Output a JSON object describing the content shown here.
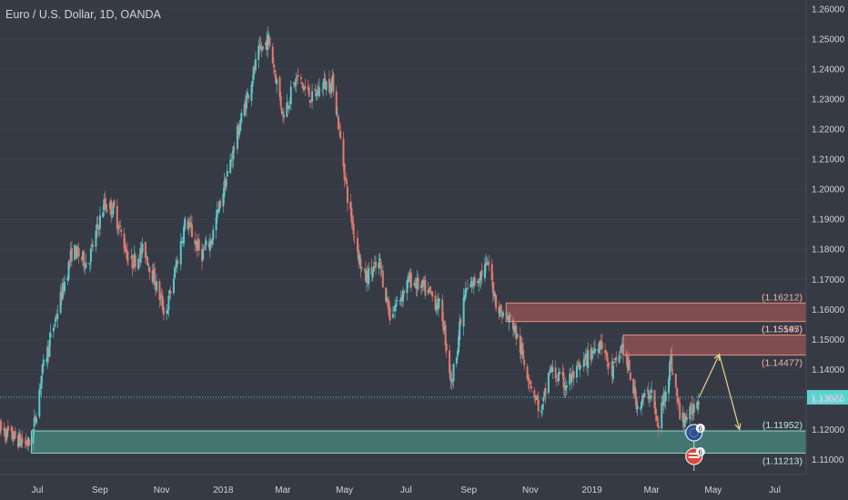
{
  "header": {
    "title": "Euro / U.S. Dollar, 1D, OANDA"
  },
  "colors": {
    "background": "#363a45",
    "up": "#5ac8c8",
    "down": "#e07b6f",
    "wick": "#c9ccd2",
    "current_line": "#5ad2d2",
    "price_tag_bg": "#5ad2d2",
    "resistance_fill": "#d9675c",
    "support_fill": "#4fa896",
    "projection": "#e8d48b",
    "axis_text": "#d1d4dc"
  },
  "chart_data": {
    "type": "candlestick",
    "symbol": "Euro / U.S. Dollar",
    "timeframe": "1D",
    "source": "OANDA",
    "ylim": [
      1.105,
      1.263
    ],
    "y_ticks": [
      "1.26000",
      "1.25000",
      "1.24000",
      "1.23000",
      "1.22000",
      "1.21000",
      "1.20000",
      "1.19000",
      "1.18000",
      "1.17000",
      "1.16000",
      "1.15000",
      "1.14000",
      "1.13000",
      "1.12000",
      "1.11000"
    ],
    "x_ticks": [
      "Jul",
      "Sep",
      "Nov",
      "2018",
      "Mar",
      "May",
      "Jul",
      "Sep",
      "Nov",
      "2019",
      "Mar",
      "May",
      "Jul"
    ],
    "current_price": "1.13072",
    "price_path": [
      [
        "2017-05-25",
        1.12
      ],
      [
        "2017-06-15",
        1.116
      ],
      [
        "2017-06-25",
        1.115
      ],
      [
        "2017-07-05",
        1.138
      ],
      [
        "2017-07-25",
        1.165
      ],
      [
        "2017-08-05",
        1.18
      ],
      [
        "2017-08-20",
        1.175
      ],
      [
        "2017-09-05",
        1.195
      ],
      [
        "2017-09-15",
        1.193
      ],
      [
        "2017-10-01",
        1.175
      ],
      [
        "2017-10-15",
        1.18
      ],
      [
        "2017-11-05",
        1.158
      ],
      [
        "2017-11-25",
        1.19
      ],
      [
        "2017-12-10",
        1.178
      ],
      [
        "2017-12-20",
        1.183
      ],
      [
        "2018-01-05",
        1.205
      ],
      [
        "2018-01-20",
        1.225
      ],
      [
        "2018-02-05",
        1.245
      ],
      [
        "2018-02-15",
        1.25
      ],
      [
        "2018-03-01",
        1.225
      ],
      [
        "2018-03-15",
        1.237
      ],
      [
        "2018-03-30",
        1.23
      ],
      [
        "2018-04-10",
        1.235
      ],
      [
        "2018-04-20",
        1.235
      ],
      [
        "2018-05-05",
        1.195
      ],
      [
        "2018-05-20",
        1.17
      ],
      [
        "2018-06-05",
        1.175
      ],
      [
        "2018-06-15",
        1.158
      ],
      [
        "2018-07-05",
        1.17
      ],
      [
        "2018-07-25",
        1.165
      ],
      [
        "2018-08-05",
        1.16
      ],
      [
        "2018-08-15",
        1.135
      ],
      [
        "2018-08-28",
        1.165
      ],
      [
        "2018-09-20",
        1.175
      ],
      [
        "2018-09-30",
        1.16
      ],
      [
        "2018-10-15",
        1.155
      ],
      [
        "2018-10-30",
        1.138
      ],
      [
        "2018-11-12",
        1.125
      ],
      [
        "2018-11-20",
        1.14
      ],
      [
        "2018-12-05",
        1.135
      ],
      [
        "2018-12-20",
        1.14
      ],
      [
        "2019-01-10",
        1.15
      ],
      [
        "2019-01-20",
        1.138
      ],
      [
        "2019-01-31",
        1.148
      ],
      [
        "2019-02-15",
        1.128
      ],
      [
        "2019-03-01",
        1.133
      ],
      [
        "2019-03-07",
        1.12
      ],
      [
        "2019-03-20",
        1.143
      ],
      [
        "2019-03-30",
        1.123
      ],
      [
        "2019-04-08",
        1.125
      ],
      [
        "2019-04-17",
        1.1307
      ]
    ],
    "zones": [
      {
        "kind": "resistance",
        "top": 1.16212,
        "bottom": 1.15595,
        "label_top": "1.16212",
        "label_bottom": "1.15595",
        "from": "2018-10-08"
      },
      {
        "kind": "resistance",
        "top": 1.15147,
        "bottom": 1.14477,
        "label_top": "1.15147",
        "label_bottom": "1.14477",
        "from": "2019-02-01"
      },
      {
        "kind": "support",
        "top": 1.11952,
        "bottom": 1.11213,
        "label_top": "1.11952",
        "label_bottom": "1.11213",
        "from": "2017-06-25"
      }
    ],
    "projection": [
      [
        "2019-04-17",
        1.1307
      ],
      [
        "2019-05-07",
        1.145
      ],
      [
        "2019-05-27",
        1.12
      ]
    ],
    "events": [
      {
        "name": "eu-flag-event",
        "count": "6",
        "date": "2019-05-01"
      },
      {
        "name": "us-flag-event",
        "count": "6",
        "date": "2019-05-01"
      }
    ]
  }
}
